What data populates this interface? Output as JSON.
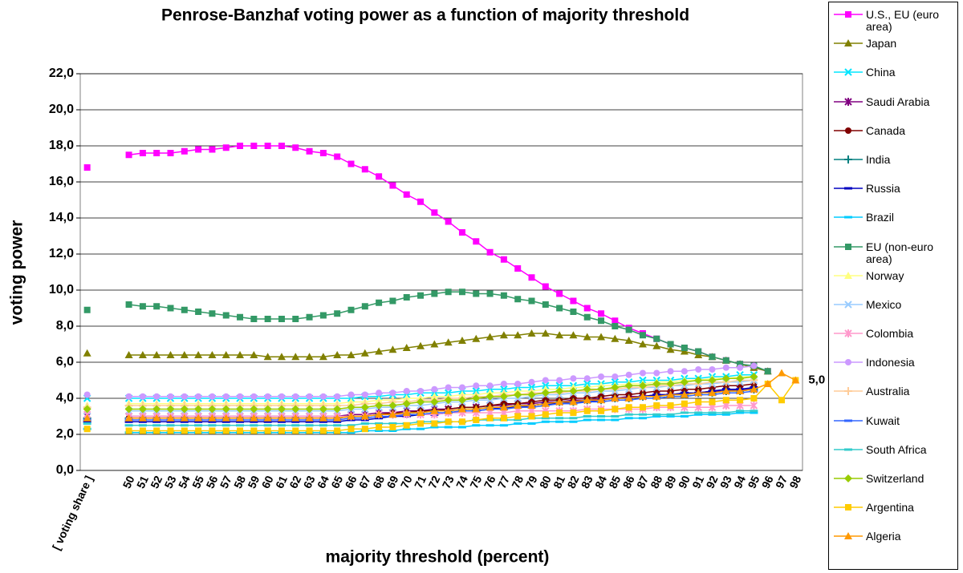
{
  "chart_data": {
    "type": "line",
    "title": "Penrose-Banzhaf voting power as a function of majority threshold",
    "x_label": "majority threshold (percent)",
    "y_label": "voting power",
    "annotation": "5,0",
    "legend": "right",
    "grid": true,
    "ylim": [
      0,
      22
    ],
    "yticks": [
      {
        "value": 0,
        "label": "0,0"
      },
      {
        "value": 2,
        "label": "2,0"
      },
      {
        "value": 4,
        "label": "4,0"
      },
      {
        "value": 6,
        "label": "6,0"
      },
      {
        "value": 8,
        "label": "8,0"
      },
      {
        "value": 10,
        "label": "10,0"
      },
      {
        "value": 12,
        "label": "12,0"
      },
      {
        "value": 14,
        "label": "14,0"
      },
      {
        "value": 16,
        "label": "16,0"
      },
      {
        "value": 18,
        "label": "18,0"
      },
      {
        "value": 20,
        "label": "20,0"
      },
      {
        "value": 22,
        "label": "22,0"
      }
    ],
    "categories": [
      "[ voting share ]",
      null,
      null,
      "50",
      "51",
      "52",
      "53",
      "54",
      "55",
      "56",
      "57",
      "58",
      "59",
      "60",
      "61",
      "62",
      "63",
      "64",
      "65",
      "66",
      "67",
      "68",
      "69",
      "70",
      "71",
      "72",
      "73",
      "74",
      "75",
      "76",
      "77",
      "78",
      "79",
      "80",
      "81",
      "82",
      "83",
      "84",
      "85",
      "86",
      "87",
      "88",
      "89",
      "90",
      "91",
      "92",
      "93",
      "94",
      "95",
      "96",
      "97",
      "98"
    ],
    "series": [
      {
        "name": "U.S., EU (euro area)",
        "color": "#ff00ff",
        "marker": "square",
        "values": [
          16.8,
          null,
          null,
          17.5,
          17.6,
          17.6,
          17.6,
          17.7,
          17.8,
          17.8,
          17.9,
          18.0,
          18.0,
          18.0,
          18.0,
          17.9,
          17.7,
          17.6,
          17.4,
          17.0,
          16.7,
          16.3,
          15.8,
          15.3,
          14.9,
          14.3,
          13.8,
          13.2,
          12.7,
          12.1,
          11.7,
          11.2,
          10.7,
          10.2,
          9.8,
          9.4,
          9.0,
          8.7,
          8.3,
          7.9,
          7.6,
          7.3,
          7.0,
          6.8,
          6.6,
          6.3,
          6.1,
          5.9,
          5.7,
          5.5,
          null,
          null
        ]
      },
      {
        "name": "Japan",
        "color": "#808000",
        "marker": "triangle",
        "values": [
          6.5,
          null,
          null,
          6.4,
          6.4,
          6.4,
          6.4,
          6.4,
          6.4,
          6.4,
          6.4,
          6.4,
          6.4,
          6.3,
          6.3,
          6.3,
          6.3,
          6.3,
          6.4,
          6.4,
          6.5,
          6.6,
          6.7,
          6.8,
          6.9,
          7.0,
          7.1,
          7.2,
          7.3,
          7.4,
          7.5,
          7.5,
          7.6,
          7.6,
          7.5,
          7.5,
          7.4,
          7.4,
          7.3,
          7.2,
          7.0,
          6.9,
          6.7,
          6.6,
          6.4,
          6.3,
          6.1,
          5.9,
          5.7,
          5.5,
          null,
          null
        ]
      },
      {
        "name": "China",
        "color": "#00e5ff",
        "marker": "x",
        "values": [
          4.0,
          null,
          null,
          4.0,
          4.0,
          4.0,
          4.0,
          4.0,
          4.0,
          4.0,
          4.0,
          4.0,
          4.0,
          4.0,
          4.0,
          4.0,
          4.0,
          4.0,
          4.0,
          4.0,
          4.1,
          4.1,
          4.2,
          4.2,
          4.3,
          4.3,
          4.3,
          4.4,
          4.4,
          4.5,
          4.5,
          4.6,
          4.6,
          4.7,
          4.7,
          4.7,
          4.8,
          4.8,
          4.9,
          4.9,
          5.0,
          5.0,
          5.0,
          5.1,
          5.1,
          5.2,
          5.2,
          5.3,
          5.3,
          null,
          null,
          null
        ]
      },
      {
        "name": "Saudi Arabia",
        "color": "#800080",
        "marker": "star",
        "values": [
          3.0,
          null,
          null,
          3.0,
          3.0,
          3.0,
          3.0,
          3.0,
          3.0,
          3.0,
          3.0,
          3.0,
          3.0,
          3.0,
          3.0,
          3.0,
          3.0,
          3.0,
          3.0,
          3.1,
          3.1,
          3.2,
          3.2,
          3.3,
          3.3,
          3.4,
          3.4,
          3.5,
          3.5,
          3.6,
          3.6,
          3.7,
          3.7,
          3.8,
          3.8,
          3.9,
          3.9,
          4.0,
          4.0,
          4.1,
          4.1,
          4.2,
          4.2,
          4.3,
          4.3,
          4.4,
          4.4,
          4.5,
          4.5,
          null,
          null,
          null
        ]
      },
      {
        "name": "Canada",
        "color": "#800000",
        "marker": "circle",
        "values": [
          2.9,
          null,
          null,
          2.9,
          2.9,
          2.9,
          2.9,
          2.9,
          2.9,
          2.9,
          2.9,
          2.9,
          2.9,
          2.9,
          2.9,
          2.9,
          2.9,
          2.9,
          2.9,
          3.0,
          3.0,
          3.1,
          3.2,
          3.2,
          3.3,
          3.3,
          3.4,
          3.5,
          3.5,
          3.6,
          3.7,
          3.7,
          3.8,
          3.9,
          3.9,
          4.0,
          4.0,
          4.1,
          4.2,
          4.2,
          4.3,
          4.4,
          4.4,
          4.5,
          4.5,
          4.6,
          4.7,
          4.7,
          4.8,
          null,
          null,
          null
        ]
      },
      {
        "name": "India",
        "color": "#008080",
        "marker": "plus",
        "values": [
          2.9,
          null,
          null,
          2.9,
          2.9,
          2.9,
          2.9,
          2.9,
          2.9,
          2.9,
          2.9,
          2.9,
          2.9,
          2.9,
          2.9,
          2.9,
          2.9,
          2.9,
          2.9,
          3.0,
          3.0,
          3.1,
          3.1,
          3.2,
          3.2,
          3.3,
          3.3,
          3.4,
          3.4,
          3.5,
          3.5,
          3.6,
          3.6,
          3.7,
          3.8,
          3.8,
          3.9,
          3.9,
          4.0,
          4.0,
          4.1,
          4.1,
          4.2,
          4.2,
          4.3,
          4.3,
          4.4,
          4.4,
          4.5,
          null,
          null,
          null
        ]
      },
      {
        "name": "Russia",
        "color": "#0000c0",
        "marker": "dash",
        "values": [
          2.7,
          null,
          null,
          2.7,
          2.7,
          2.7,
          2.7,
          2.7,
          2.7,
          2.7,
          2.7,
          2.7,
          2.7,
          2.7,
          2.7,
          2.7,
          2.7,
          2.7,
          2.7,
          2.8,
          2.8,
          2.9,
          3.0,
          3.0,
          3.1,
          3.1,
          3.2,
          3.3,
          3.3,
          3.4,
          3.5,
          3.5,
          3.6,
          3.7,
          3.7,
          3.8,
          3.8,
          3.9,
          4.0,
          4.0,
          4.1,
          4.2,
          4.2,
          4.3,
          4.3,
          4.4,
          4.5,
          4.5,
          4.6,
          null,
          null,
          null
        ]
      },
      {
        "name": "Brazil",
        "color": "#00ccff",
        "marker": "dash",
        "values": [
          2.3,
          null,
          null,
          2.1,
          2.1,
          2.1,
          2.1,
          2.1,
          2.1,
          2.1,
          2.1,
          2.1,
          2.1,
          2.1,
          2.1,
          2.1,
          2.1,
          2.1,
          2.1,
          2.1,
          2.2,
          2.2,
          2.2,
          2.3,
          2.3,
          2.4,
          2.4,
          2.4,
          2.5,
          2.5,
          2.5,
          2.6,
          2.6,
          2.7,
          2.7,
          2.7,
          2.8,
          2.8,
          2.8,
          2.9,
          2.9,
          3.0,
          3.0,
          3.0,
          3.1,
          3.1,
          3.1,
          3.2,
          3.2,
          null,
          null,
          null
        ]
      },
      {
        "name": "EU (non-euro area)",
        "color": "#339966",
        "marker": "square",
        "values": [
          8.9,
          null,
          null,
          9.2,
          9.1,
          9.1,
          9.0,
          8.9,
          8.8,
          8.7,
          8.6,
          8.5,
          8.4,
          8.4,
          8.4,
          8.4,
          8.5,
          8.6,
          8.7,
          8.9,
          9.1,
          9.3,
          9.4,
          9.6,
          9.7,
          9.8,
          9.9,
          9.9,
          9.8,
          9.8,
          9.7,
          9.5,
          9.4,
          9.2,
          9.0,
          8.8,
          8.5,
          8.3,
          8.0,
          7.8,
          7.5,
          7.3,
          7.0,
          6.8,
          6.6,
          6.3,
          6.1,
          5.9,
          5.8,
          5.5,
          null,
          null
        ]
      },
      {
        "name": "Norway",
        "color": "#ffff80",
        "marker": "triangle",
        "values": [
          3.6,
          null,
          null,
          3.7,
          3.7,
          3.7,
          3.7,
          3.7,
          3.7,
          3.7,
          3.7,
          3.7,
          3.7,
          3.7,
          3.7,
          3.7,
          3.7,
          3.7,
          3.7,
          3.8,
          3.8,
          3.9,
          3.9,
          4.0,
          4.0,
          4.1,
          4.1,
          4.2,
          4.2,
          4.3,
          4.3,
          4.4,
          4.4,
          4.5,
          4.5,
          4.6,
          4.6,
          4.7,
          4.7,
          4.8,
          4.8,
          4.9,
          4.9,
          5.0,
          5.0,
          5.1,
          5.1,
          5.2,
          5.2,
          null,
          null,
          null
        ]
      },
      {
        "name": "Mexico",
        "color": "#99ccff",
        "marker": "x",
        "values": [
          3.3,
          null,
          null,
          3.3,
          3.3,
          3.3,
          3.3,
          3.3,
          3.3,
          3.3,
          3.3,
          3.3,
          3.3,
          3.3,
          3.3,
          3.3,
          3.3,
          3.3,
          3.3,
          3.4,
          3.4,
          3.5,
          3.5,
          3.6,
          3.6,
          3.7,
          3.8,
          3.8,
          3.9,
          3.9,
          4.0,
          4.0,
          4.1,
          4.2,
          4.2,
          4.3,
          4.3,
          4.4,
          4.4,
          4.5,
          4.6,
          4.6,
          4.7,
          4.7,
          4.8,
          4.8,
          4.9,
          4.9,
          5.0,
          null,
          null,
          null
        ]
      },
      {
        "name": "Colombia",
        "color": "#ff99cc",
        "marker": "star",
        "values": [
          3.1,
          null,
          null,
          3.0,
          3.0,
          3.0,
          3.0,
          3.0,
          3.0,
          3.0,
          3.0,
          3.0,
          3.0,
          3.0,
          3.0,
          3.0,
          3.0,
          3.0,
          3.0,
          3.0,
          3.0,
          3.1,
          3.1,
          3.1,
          3.1,
          3.1,
          3.2,
          3.2,
          3.2,
          3.2,
          3.2,
          3.3,
          3.3,
          3.3,
          3.3,
          3.3,
          3.4,
          3.4,
          3.4,
          3.4,
          3.4,
          3.5,
          3.5,
          3.5,
          3.5,
          3.5,
          3.6,
          3.6,
          3.6,
          null,
          null,
          null
        ]
      },
      {
        "name": "Indonesia",
        "color": "#cc99ff",
        "marker": "circle",
        "values": [
          4.2,
          null,
          null,
          4.1,
          4.1,
          4.1,
          4.1,
          4.1,
          4.1,
          4.1,
          4.1,
          4.1,
          4.1,
          4.1,
          4.1,
          4.1,
          4.1,
          4.1,
          4.1,
          4.2,
          4.2,
          4.3,
          4.3,
          4.4,
          4.4,
          4.5,
          4.6,
          4.6,
          4.7,
          4.7,
          4.8,
          4.8,
          4.9,
          5.0,
          5.0,
          5.1,
          5.1,
          5.2,
          5.2,
          5.3,
          5.4,
          5.4,
          5.5,
          5.5,
          5.6,
          5.6,
          5.7,
          5.7,
          5.8,
          null,
          null,
          null
        ]
      },
      {
        "name": "Australia",
        "color": "#ffcc99",
        "marker": "plus",
        "values": [
          3.5,
          null,
          null,
          3.6,
          3.6,
          3.6,
          3.6,
          3.6,
          3.6,
          3.6,
          3.6,
          3.6,
          3.6,
          3.6,
          3.6,
          3.6,
          3.6,
          3.6,
          3.6,
          3.6,
          3.7,
          3.7,
          3.8,
          3.8,
          3.9,
          3.9,
          4.0,
          4.0,
          4.1,
          4.1,
          4.2,
          4.2,
          4.3,
          4.3,
          4.3,
          4.4,
          4.4,
          4.5,
          4.5,
          4.6,
          4.6,
          4.7,
          4.7,
          4.8,
          4.8,
          4.9,
          4.9,
          5.0,
          5.0,
          null,
          null,
          null
        ]
      },
      {
        "name": "Kuwait",
        "color": "#3366ff",
        "marker": "dash",
        "values": [
          2.8,
          null,
          null,
          2.8,
          2.8,
          2.8,
          2.8,
          2.8,
          2.8,
          2.8,
          2.8,
          2.8,
          2.8,
          2.8,
          2.8,
          2.8,
          2.8,
          2.8,
          2.8,
          2.9,
          2.9,
          3.0,
          3.0,
          3.1,
          3.1,
          3.2,
          3.2,
          3.3,
          3.3,
          3.4,
          3.4,
          3.5,
          3.5,
          3.6,
          3.7,
          3.7,
          3.8,
          3.8,
          3.9,
          3.9,
          4.0,
          4.0,
          4.1,
          4.1,
          4.2,
          4.2,
          4.3,
          4.3,
          4.4,
          null,
          null,
          null
        ]
      },
      {
        "name": "South Africa",
        "color": "#33cccc",
        "marker": "dash",
        "values": [
          2.6,
          null,
          null,
          2.5,
          2.5,
          2.5,
          2.5,
          2.5,
          2.5,
          2.5,
          2.5,
          2.5,
          2.5,
          2.5,
          2.5,
          2.5,
          2.5,
          2.5,
          2.5,
          2.5,
          2.6,
          2.6,
          2.6,
          2.6,
          2.7,
          2.7,
          2.7,
          2.7,
          2.8,
          2.8,
          2.8,
          2.8,
          2.9,
          2.9,
          2.9,
          2.9,
          3.0,
          3.0,
          3.0,
          3.1,
          3.1,
          3.1,
          3.1,
          3.2,
          3.2,
          3.2,
          3.2,
          3.3,
          3.3,
          null,
          null,
          null
        ]
      },
      {
        "name": "Switzerland",
        "color": "#99cc00",
        "marker": "diamond",
        "values": [
          3.4,
          null,
          null,
          3.4,
          3.4,
          3.4,
          3.4,
          3.4,
          3.4,
          3.4,
          3.4,
          3.4,
          3.4,
          3.4,
          3.4,
          3.4,
          3.4,
          3.4,
          3.4,
          3.5,
          3.5,
          3.6,
          3.6,
          3.7,
          3.8,
          3.8,
          3.9,
          3.9,
          4.0,
          4.1,
          4.1,
          4.2,
          4.2,
          4.3,
          4.4,
          4.4,
          4.5,
          4.5,
          4.6,
          4.7,
          4.7,
          4.8,
          4.8,
          4.9,
          5.0,
          5.0,
          5.1,
          5.1,
          5.2,
          null,
          null,
          null
        ]
      },
      {
        "name": "Argentina",
        "color": "#ffcc00",
        "marker": "square",
        "values": [
          2.3,
          null,
          null,
          2.2,
          2.2,
          2.2,
          2.2,
          2.2,
          2.2,
          2.2,
          2.2,
          2.2,
          2.2,
          2.2,
          2.2,
          2.2,
          2.2,
          2.2,
          2.2,
          2.3,
          2.3,
          2.4,
          2.4,
          2.5,
          2.6,
          2.6,
          2.7,
          2.7,
          2.8,
          2.9,
          2.9,
          3.0,
          3.0,
          3.1,
          3.2,
          3.2,
          3.3,
          3.3,
          3.4,
          3.5,
          3.5,
          3.6,
          3.6,
          3.7,
          3.8,
          3.8,
          3.9,
          3.9,
          4.0,
          4.8,
          3.9,
          5.0
        ]
      },
      {
        "name": "Algeria",
        "color": "#ff9900",
        "marker": "triangle",
        "values": [
          2.9,
          null,
          null,
          2.9,
          2.9,
          2.9,
          2.9,
          2.9,
          2.9,
          2.9,
          2.9,
          2.9,
          2.9,
          2.9,
          2.9,
          2.9,
          2.9,
          2.9,
          2.9,
          3.0,
          3.0,
          3.1,
          3.1,
          3.2,
          3.2,
          3.3,
          3.3,
          3.4,
          3.4,
          3.5,
          3.5,
          3.6,
          3.6,
          3.7,
          3.8,
          3.8,
          3.9,
          3.9,
          4.0,
          4.0,
          4.1,
          4.1,
          4.2,
          4.2,
          4.3,
          4.3,
          4.4,
          4.4,
          4.5,
          4.8,
          5.4,
          5.0
        ]
      }
    ]
  }
}
